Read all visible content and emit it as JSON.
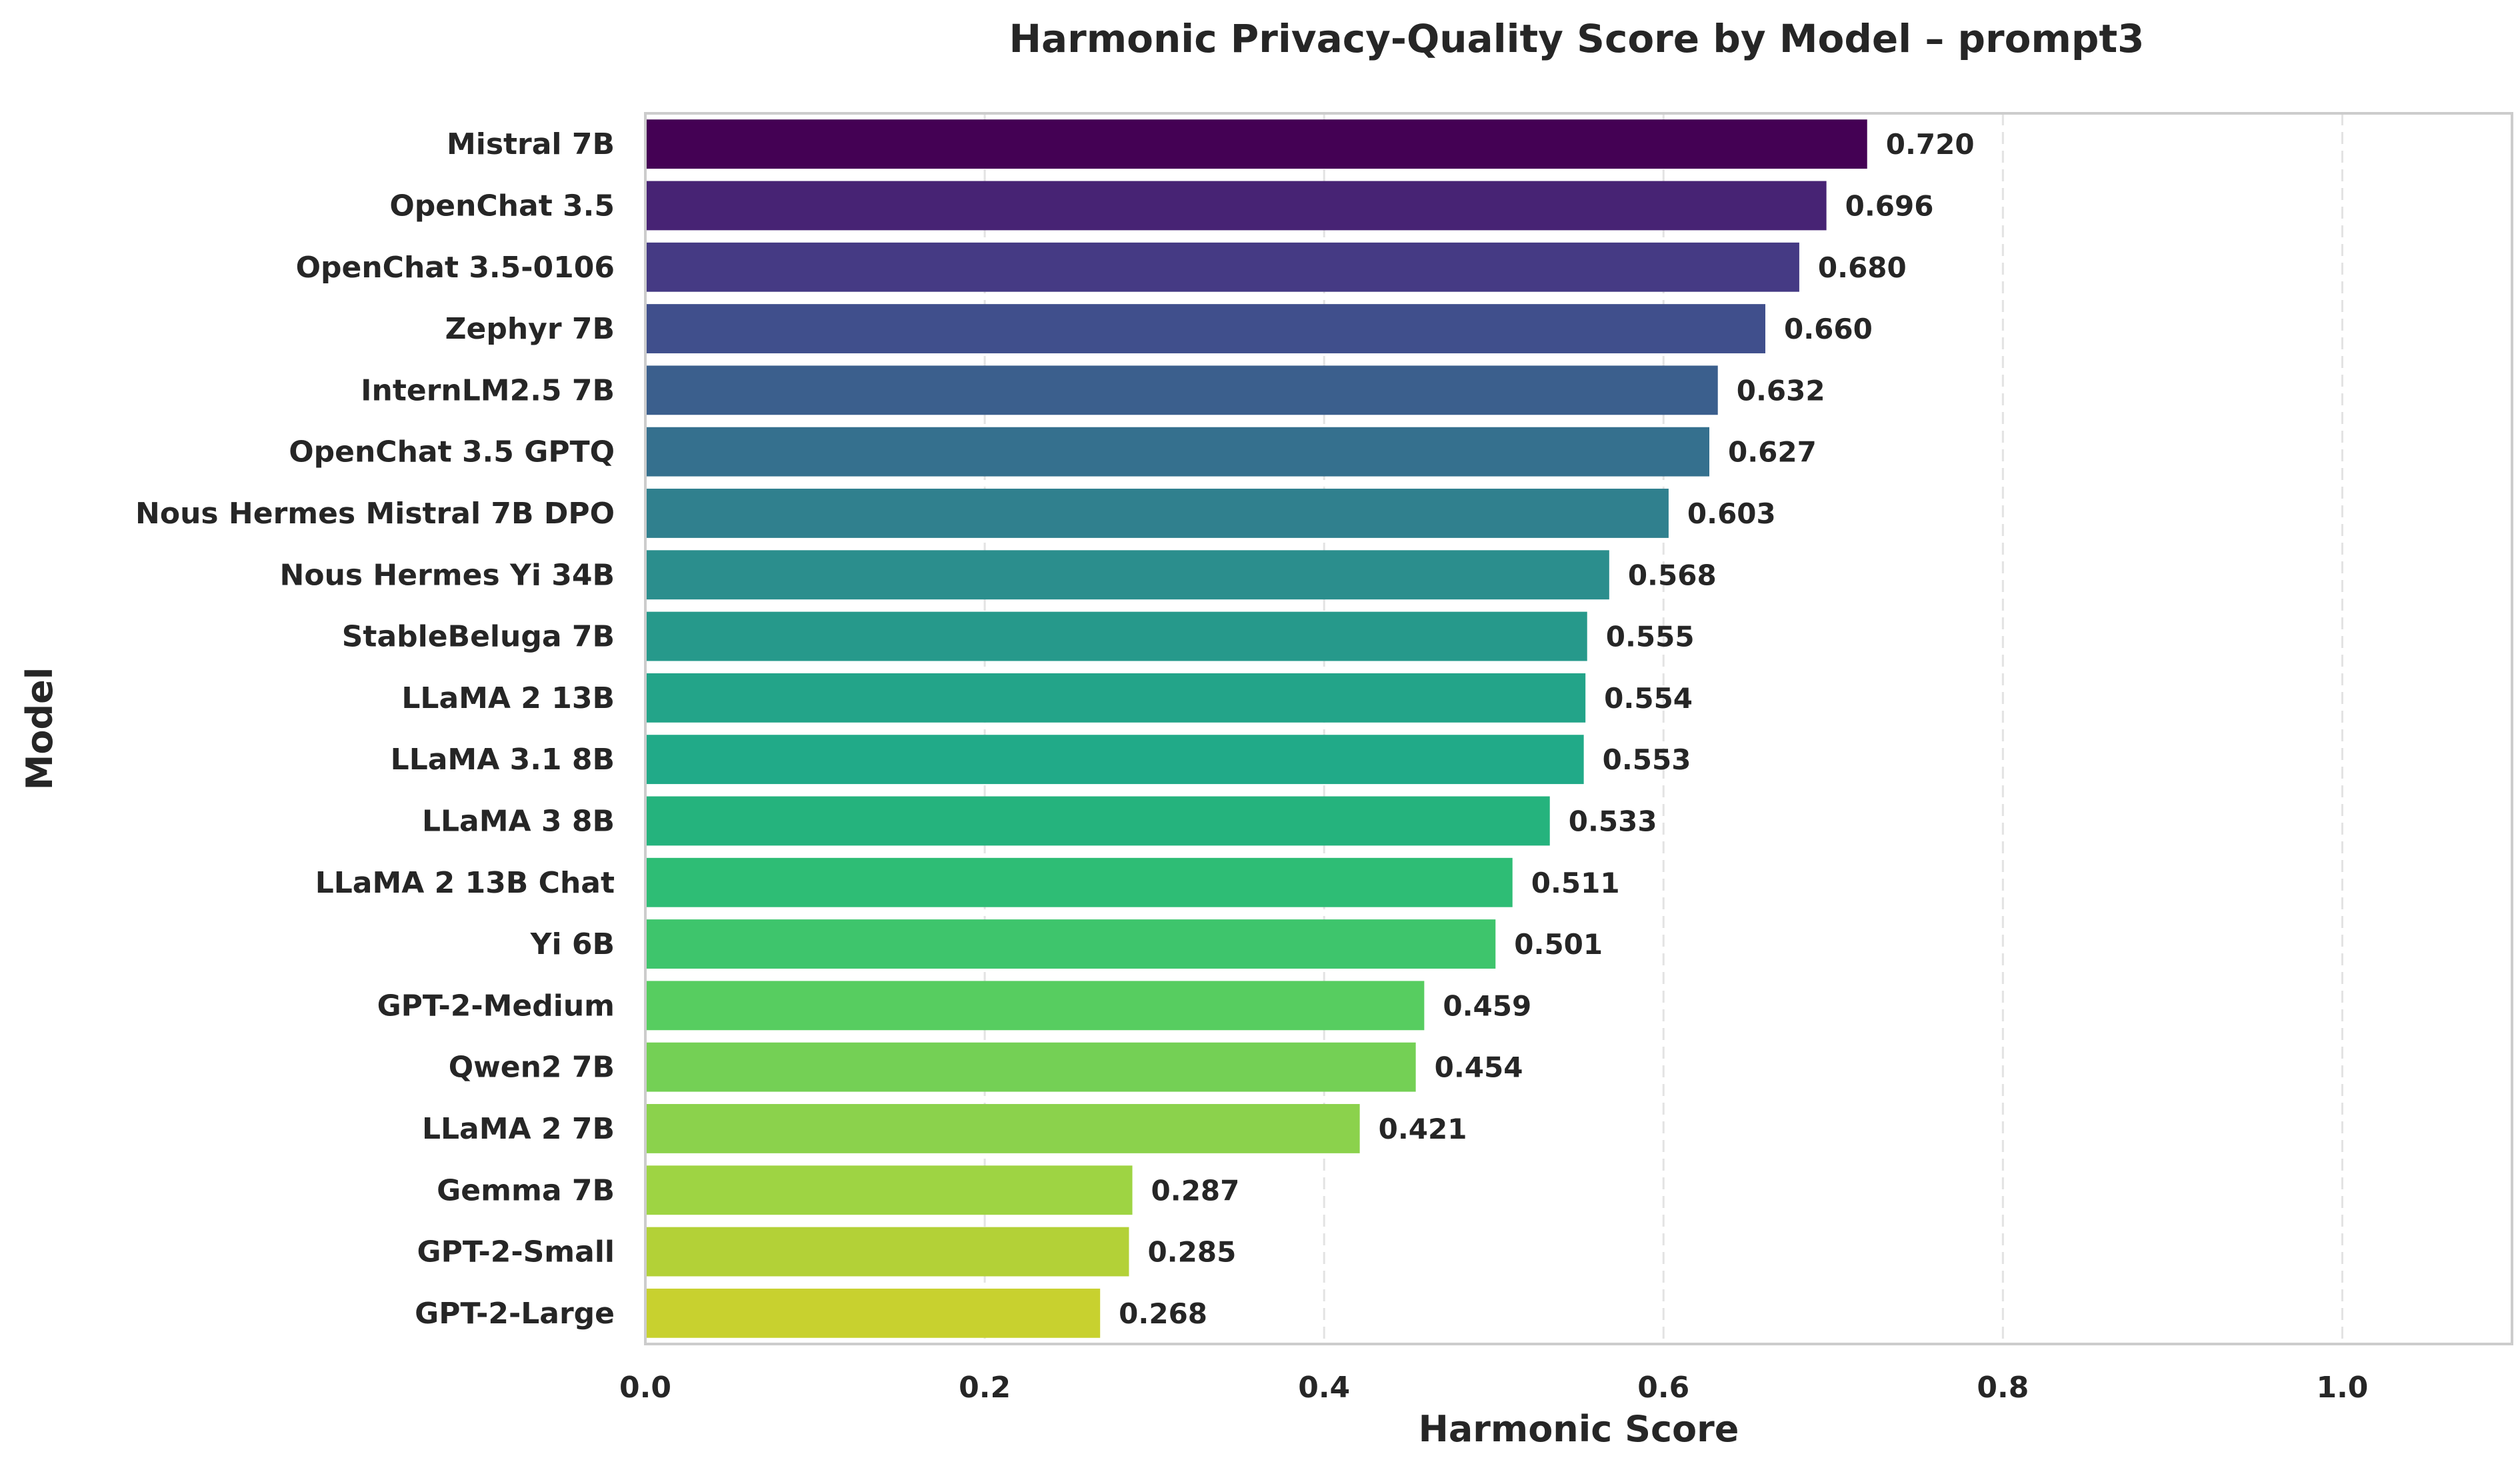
{
  "chart_data": {
    "type": "bar",
    "orientation": "horizontal",
    "title": "Harmonic Privacy-Quality Score by Model – prompt3",
    "xlabel": "Harmonic Score",
    "ylabel": "Model",
    "xlim": [
      0,
      1.1
    ],
    "xticks": [
      0.0,
      0.2,
      0.4,
      0.6,
      0.8,
      1.0
    ],
    "xtick_labels": [
      "0.0",
      "0.2",
      "0.4",
      "0.6",
      "0.8",
      "1.0"
    ],
    "grid": "x-dashed",
    "colormap": "viridis",
    "categories": [
      "Mistral 7B",
      "OpenChat 3.5",
      "OpenChat 3.5-0106",
      "Zephyr 7B",
      "InternLM2.5 7B",
      "OpenChat 3.5 GPTQ",
      "Nous Hermes Mistral 7B DPO",
      "Nous Hermes Yi 34B",
      "StableBeluga 7B",
      "LLaMA 2 13B",
      "LLaMA 3.1 8B",
      "LLaMA 3 8B",
      "LLaMA 2 13B Chat",
      "Yi 6B",
      "GPT-2-Medium",
      "Qwen2 7B",
      "LLaMA 2 7B",
      "Gemma 7B",
      "GPT-2-Small",
      "GPT-2-Large"
    ],
    "values": [
      0.72,
      0.696,
      0.68,
      0.66,
      0.632,
      0.627,
      0.603,
      0.568,
      0.555,
      0.554,
      0.553,
      0.533,
      0.511,
      0.501,
      0.459,
      0.454,
      0.421,
      0.287,
      0.285,
      0.268
    ],
    "value_labels": [
      "0.720",
      "0.696",
      "0.680",
      "0.660",
      "0.632",
      "0.627",
      "0.603",
      "0.568",
      "0.555",
      "0.554",
      "0.553",
      "0.533",
      "0.511",
      "0.501",
      "0.459",
      "0.454",
      "0.421",
      "0.287",
      "0.285",
      "0.268"
    ],
    "colors": [
      "#440154",
      "#472374",
      "#453a84",
      "#404f8c",
      "#3b5f8d",
      "#35708e",
      "#30808e",
      "#2b8e8d",
      "#26998b",
      "#23a489",
      "#21aa88",
      "#25b37d",
      "#2ebd75",
      "#3ec56c",
      "#57cd60",
      "#74d055",
      "#8bd24c",
      "#9ed443",
      "#b3d137",
      "#c8d12f"
    ]
  }
}
